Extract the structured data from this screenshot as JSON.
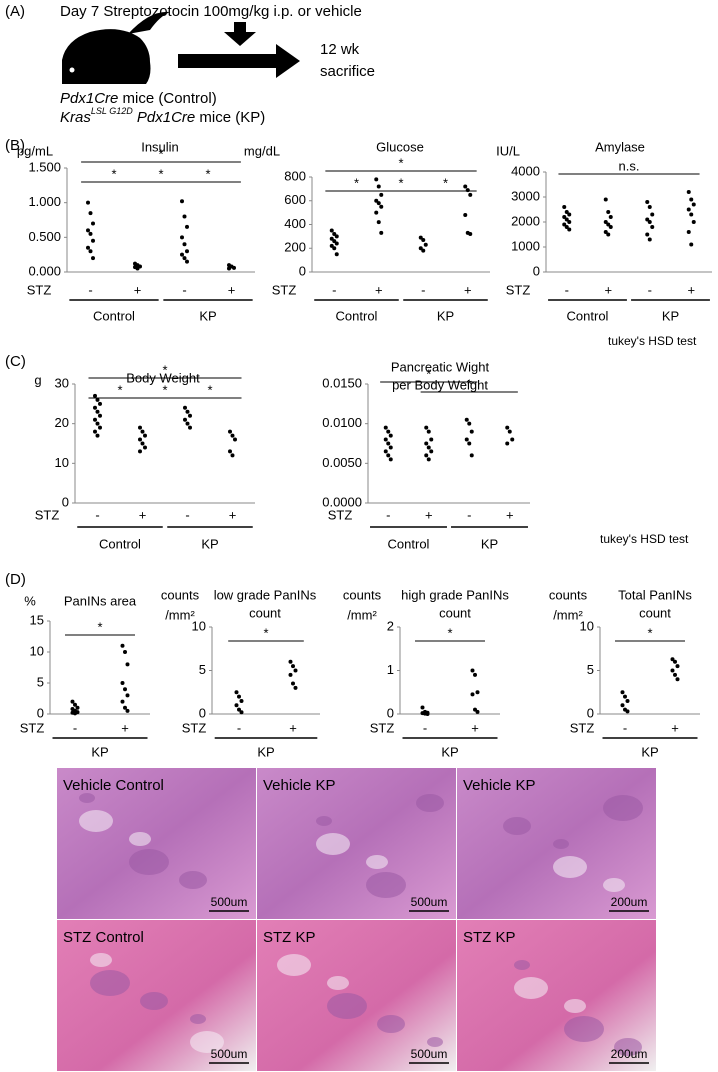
{
  "panel_a": {
    "label": "(A)",
    "treatment": "Day 7 Streptozotocin 100mg/kg i.p. or vehicle",
    "outcome": [
      "12 wk",
      "sacrifice"
    ],
    "mice_control": {
      "gene": "Pdx1Cre",
      "text": "mice (Control)"
    },
    "mice_kp": {
      "gene": "Kras",
      "superscript": "LSL G12D",
      "gene2": "Pdx1Cre",
      "text": "mice (KP)"
    }
  },
  "panel_labels": [
    "(B)",
    "(C)",
    "(D)"
  ],
  "notes": [
    "tukey's HSD test",
    "tukey's HSD test"
  ],
  "chart_data": [
    {
      "type": "strip",
      "title": [
        "Insulin"
      ],
      "ylabel": [
        "pg/mL"
      ],
      "condition_label": "STZ",
      "categories": [
        "-",
        "+",
        "-",
        "+"
      ],
      "groups": [
        "Control",
        "KP"
      ],
      "values": [
        [
          1.0,
          0.85,
          0.7,
          0.6,
          0.55,
          0.45,
          0.35,
          0.3,
          0.2
        ],
        [
          0.12,
          0.1,
          0.08,
          0.07,
          0.05
        ],
        [
          1.02,
          0.8,
          0.65,
          0.5,
          0.4,
          0.3,
          0.25,
          0.2,
          0.15
        ],
        [
          0.1,
          0.08,
          0.06,
          0.05
        ]
      ],
      "ylim": [
        0,
        1.5
      ],
      "yticks": [
        {
          "value": 0,
          "label": "0.000"
        },
        {
          "value": 0.5,
          "label": "0.500"
        },
        {
          "value": 1,
          "label": "1.000"
        },
        {
          "value": 1.5,
          "label": "1.500"
        }
      ],
      "annotations": [
        "*",
        "*",
        "*",
        "*"
      ],
      "color": "#000000"
    },
    {
      "type": "strip",
      "title": [
        "Glucose"
      ],
      "ylabel": [
        "mg/dL"
      ],
      "condition_label": "STZ",
      "categories": [
        "-",
        "+",
        "-",
        "+"
      ],
      "groups": [
        "Control",
        "KP"
      ],
      "values": [
        [
          350,
          320,
          300,
          280,
          260,
          240,
          220,
          200,
          150
        ],
        [
          780,
          720,
          650,
          600,
          580,
          550,
          500,
          420,
          330
        ],
        [
          290,
          270,
          230,
          200,
          180
        ],
        [
          720,
          690,
          650,
          480,
          330,
          320
        ]
      ],
      "ylim": [
        0,
        800
      ],
      "yticks": [
        0,
        200,
        400,
        600,
        800
      ],
      "annotations": [
        "*",
        "*",
        "*",
        "*"
      ],
      "color": "#000000"
    },
    {
      "type": "strip",
      "title": [
        "Amylase"
      ],
      "ylabel": [
        "IU/L"
      ],
      "condition_label": "STZ",
      "categories": [
        "-",
        "+",
        "-",
        "+"
      ],
      "groups": [
        "Control",
        "KP"
      ],
      "values": [
        [
          2600,
          2400,
          2300,
          2200,
          2100,
          2000,
          1900,
          1800,
          1700
        ],
        [
          2900,
          2400,
          2200,
          2000,
          1900,
          1800,
          1600,
          1500
        ],
        [
          2800,
          2600,
          2300,
          2100,
          2000,
          1800,
          1500,
          1300
        ],
        [
          3200,
          2900,
          2700,
          2500,
          2300,
          2000,
          1600,
          1100
        ]
      ],
      "ylim": [
        0,
        4000
      ],
      "yticks": [
        0,
        1000,
        2000,
        3000,
        4000
      ],
      "annotations": [
        "n.s."
      ],
      "color": "#000000"
    },
    {
      "type": "strip",
      "title": [
        "Body Weight"
      ],
      "ylabel": [
        "g"
      ],
      "condition_label": "STZ",
      "categories": [
        "-",
        "+",
        "-",
        "+"
      ],
      "groups": [
        "Control",
        "KP"
      ],
      "values": [
        [
          27,
          26,
          25,
          24,
          23,
          22,
          21,
          20,
          19,
          18,
          17
        ],
        [
          19,
          18,
          17,
          16,
          15,
          14,
          13
        ],
        [
          24,
          23,
          22,
          21,
          20,
          19
        ],
        [
          18,
          17,
          16,
          13,
          12
        ]
      ],
      "ylim": [
        0,
        30
      ],
      "yticks": [
        0,
        10,
        20,
        30
      ],
      "annotations": [
        "*",
        "*",
        "*",
        "*"
      ],
      "color": "#000000"
    },
    {
      "type": "strip",
      "title": [
        "Pancreatic Wight",
        "per Body Weight"
      ],
      "ylabel": [],
      "condition_label": "STZ",
      "categories": [
        "-",
        "+",
        "-",
        "+"
      ],
      "groups": [
        "Control",
        "KP"
      ],
      "values": [
        [
          0.0095,
          0.009,
          0.0085,
          0.008,
          0.0075,
          0.007,
          0.0065,
          0.006,
          0.0055
        ],
        [
          0.0095,
          0.009,
          0.008,
          0.0075,
          0.007,
          0.0065,
          0.006,
          0.0055
        ],
        [
          0.0105,
          0.01,
          0.009,
          0.008,
          0.0075,
          0.006
        ],
        [
          0.0095,
          0.009,
          0.008,
          0.0075
        ]
      ],
      "ylim": [
        0,
        0.015
      ],
      "yticks": [
        {
          "value": 0,
          "label": "0.0000"
        },
        {
          "value": 0.005,
          "label": "0.0050"
        },
        {
          "value": 0.01,
          "label": "0.0100"
        },
        {
          "value": 0.015,
          "label": "0.0150"
        }
      ],
      "annotations": [
        "*",
        "*"
      ],
      "color": "#000000"
    },
    {
      "type": "strip",
      "title": [
        "PanINs area"
      ],
      "ylabel": [
        "%"
      ],
      "condition_label": "STZ",
      "categories": [
        "-",
        "+"
      ],
      "groups": [
        "KP"
      ],
      "values": [
        [
          2,
          1.5,
          1,
          0.8,
          0.5,
          0.3,
          0.2,
          0.1
        ],
        [
          11,
          10,
          8,
          5,
          4,
          3,
          2,
          1,
          0.5
        ]
      ],
      "ylim": [
        0,
        15
      ],
      "yticks": [
        0,
        5,
        10,
        15
      ],
      "annotations": [
        "*"
      ],
      "color": "#000000"
    },
    {
      "type": "strip",
      "title": [
        "low grade PanINs",
        "count"
      ],
      "ylabel": [
        "counts",
        "/mm²"
      ],
      "condition_label": "STZ",
      "categories": [
        "-",
        "+"
      ],
      "groups": [
        "KP"
      ],
      "values": [
        [
          2.5,
          2,
          1.5,
          1,
          0.5,
          0.2
        ],
        [
          6,
          5.5,
          5,
          4.5,
          3.5,
          3
        ]
      ],
      "ylim": [
        0,
        10
      ],
      "yticks": [
        0,
        5,
        10
      ],
      "annotations": [
        "*"
      ],
      "color": "#000000"
    },
    {
      "type": "strip",
      "title": [
        "high grade PanINs",
        "count"
      ],
      "ylabel": [
        "counts",
        "/mm²"
      ],
      "condition_label": "STZ",
      "categories": [
        "-",
        "+"
      ],
      "groups": [
        "KP"
      ],
      "values": [
        [
          0.15,
          0.05,
          0.03,
          0.02,
          0.01,
          0
        ],
        [
          1,
          0.9,
          0.5,
          0.45,
          0.1,
          0.05
        ]
      ],
      "ylim": [
        0,
        2
      ],
      "yticks": [
        0,
        1,
        2
      ],
      "annotations": [
        "*"
      ],
      "color": "#000000"
    },
    {
      "type": "strip",
      "title": [
        "Total PanINs",
        "count"
      ],
      "ylabel": [
        "counts",
        "/mm²"
      ],
      "condition_label": "STZ",
      "categories": [
        "-",
        "+"
      ],
      "groups": [
        "KP"
      ],
      "values": [
        [
          2.5,
          2,
          1.5,
          1,
          0.5,
          0.3
        ],
        [
          6.3,
          6,
          5.5,
          5,
          4.5,
          4
        ]
      ],
      "ylim": [
        0,
        10
      ],
      "yticks": [
        0,
        5,
        10
      ],
      "annotations": [
        "*"
      ],
      "color": "#000000"
    }
  ],
  "histology": [
    {
      "label": "Vehicle Control",
      "scale": "500um"
    },
    {
      "label": "Vehicle KP",
      "scale": "500um"
    },
    {
      "label": "Vehicle KP",
      "scale": "200um"
    },
    {
      "label": "STZ Control",
      "scale": "500um"
    },
    {
      "label": "STZ KP",
      "scale": "500um"
    },
    {
      "label": "STZ KP",
      "scale": "200um"
    }
  ]
}
